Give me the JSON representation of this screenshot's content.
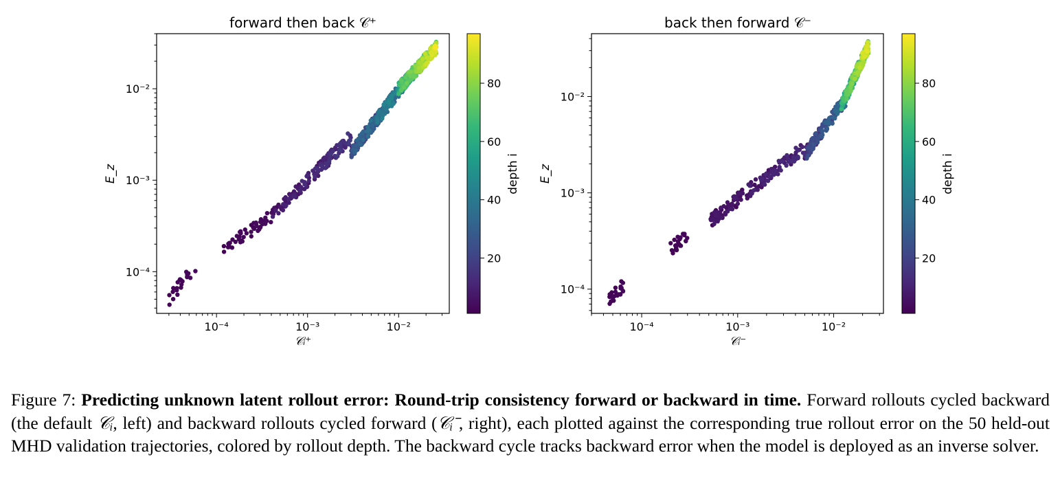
{
  "figure": {
    "colorbar_label": "depth i",
    "colorbar_ticks": [
      "20",
      "40",
      "60",
      "80"
    ],
    "colorbar_tick_values": [
      20,
      40,
      60,
      80
    ],
    "colorbar_range": [
      1,
      97
    ],
    "colormap": [
      "#440154",
      "#482878",
      "#3e4a89",
      "#31688e",
      "#26828e",
      "#1f9e89",
      "#35b779",
      "#6ece58",
      "#b5de2b",
      "#fde725"
    ]
  },
  "chart_data": [
    {
      "type": "scatter",
      "title": "forward then back 𝒞⁺",
      "xlabel": "𝒞ᵢ⁺",
      "ylabel": "E_z",
      "xscale": "log",
      "yscale": "log",
      "xlim": [
        2.2e-05,
        0.036
      ],
      "ylim": [
        3.5e-05,
        0.04
      ],
      "x_ticks": [
        {
          "v": 0.0001,
          "label": "10⁻⁴"
        },
        {
          "v": 0.001,
          "label": "10⁻³"
        },
        {
          "v": 0.01,
          "label": "10⁻²"
        }
      ],
      "y_ticks": [
        {
          "v": 0.0001,
          "label": "10⁻⁴"
        },
        {
          "v": 0.001,
          "label": "10⁻³"
        },
        {
          "v": 0.01,
          "label": "10⁻²"
        }
      ],
      "color_by": "depth i",
      "clusters": [
        {
          "x": [
            3e-05,
            6e-05
          ],
          "y": [
            5e-05,
            0.00012
          ],
          "depth": [
            1,
            3
          ],
          "n": 22
        },
        {
          "x": [
            0.00012,
            0.0004
          ],
          "y": [
            0.00018,
            0.0004
          ],
          "depth": [
            1,
            4
          ],
          "n": 45
        },
        {
          "x": [
            0.0004,
            0.003
          ],
          "y": [
            0.0004,
            0.003
          ],
          "depth": [
            1,
            18
          ],
          "n": 160
        },
        {
          "x": [
            0.003,
            0.012
          ],
          "y": [
            0.002,
            0.012
          ],
          "depth": [
            5,
            55
          ],
          "n": 260
        },
        {
          "x": [
            0.01,
            0.026
          ],
          "y": [
            0.01,
            0.028
          ],
          "depth": [
            45,
            97
          ],
          "n": 330
        }
      ]
    },
    {
      "type": "scatter",
      "title": "back then forward 𝒞⁻",
      "xlabel": "𝒞ᵢ⁻",
      "ylabel": "E_z",
      "xscale": "log",
      "yscale": "log",
      "xlim": [
        3e-05,
        0.033
      ],
      "ylim": [
        5.6e-05,
        0.045
      ],
      "x_ticks": [
        {
          "v": 0.0001,
          "label": "10⁻⁴"
        },
        {
          "v": 0.001,
          "label": "10⁻³"
        },
        {
          "v": 0.01,
          "label": "10⁻²"
        }
      ],
      "y_ticks": [
        {
          "v": 0.0001,
          "label": "10⁻⁴"
        },
        {
          "v": 0.001,
          "label": "10⁻³"
        },
        {
          "v": 0.01,
          "label": "10⁻²"
        }
      ],
      "color_by": "depth i",
      "clusters": [
        {
          "x": [
            4.5e-05,
            6.5e-05
          ],
          "y": [
            8e-05,
            0.00011
          ],
          "depth": [
            1,
            3
          ],
          "n": 25
        },
        {
          "x": [
            0.0002,
            0.0003
          ],
          "y": [
            0.00026,
            0.00038
          ],
          "depth": [
            1,
            3
          ],
          "n": 25
        },
        {
          "x": [
            0.0005,
            0.005
          ],
          "y": [
            0.0005,
            0.003
          ],
          "depth": [
            1,
            14
          ],
          "n": 170
        },
        {
          "x": [
            0.005,
            0.014
          ],
          "y": [
            0.0025,
            0.01
          ],
          "depth": [
            5,
            40
          ],
          "n": 180
        },
        {
          "x": [
            0.012,
            0.023
          ],
          "y": [
            0.008,
            0.033
          ],
          "depth": [
            40,
            97
          ],
          "n": 300
        }
      ]
    }
  ],
  "caption": {
    "label": "Figure 7:",
    "title": "Predicting unknown latent rollout error: Round-trip consistency forward or backward in time.",
    "text_1": "Forward rollouts cycled backward (the default ",
    "math_1": "𝒞ᵢ",
    "text_2": ", left) and backward rollouts cycled forward (",
    "math_2": "𝒞ᵢ⁻",
    "text_3": ", right), each plotted against the corresponding true rollout error on the 50 held-out MHD validation trajectories, colored by rollout depth. The backward cycle tracks backward error when the model is deployed as an inverse solver."
  }
}
